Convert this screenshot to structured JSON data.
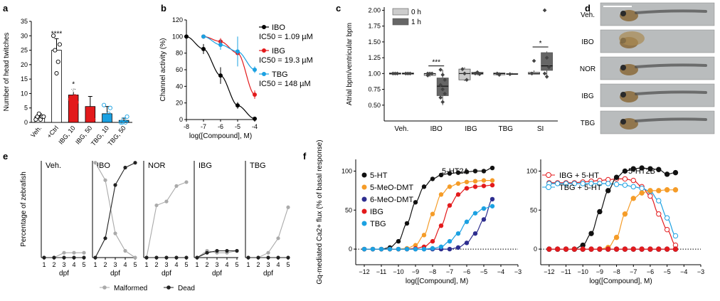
{
  "panel_letters": [
    "a",
    "b",
    "c",
    "d",
    "e",
    "f"
  ],
  "chart_data": [
    {
      "panel": "a",
      "type": "bar",
      "ylabel": "Number of head twitches",
      "ylim": [
        0,
        35
      ],
      "yticks": [
        0,
        5,
        10,
        15,
        20,
        25,
        30,
        35
      ],
      "categories": [
        "Veh.",
        "+Ctrl",
        "IBG, 10",
        "IBG, 50",
        "TBG, 10",
        "TBG, 50"
      ],
      "values": [
        2,
        25,
        9.5,
        5.5,
        3,
        0.7
      ],
      "errors": [
        1,
        4,
        2,
        3.5,
        2.5,
        0.8
      ],
      "bar_colors": [
        "#ffffff",
        "#ffffff",
        "#e31a1c",
        "#e31a1c",
        "#1ba1e2",
        "#1ba1e2"
      ],
      "points": [
        [
          1,
          2,
          3,
          1,
          2,
          2
        ],
        [
          30,
          25,
          17,
          21,
          27
        ],
        [
          8,
          11,
          12,
          9,
          7
        ],
        [
          12,
          3,
          3,
          4,
          1
        ],
        [
          6,
          2,
          1,
          3,
          5
        ],
        [
          0,
          0,
          1,
          0,
          2
        ]
      ],
      "significance": [
        "",
        "****",
        "*",
        "",
        "",
        ""
      ]
    },
    {
      "panel": "b",
      "type": "line",
      "xlabel": "log([Compound], M)",
      "ylabel": "Channel activity (%)",
      "xlim": [
        -8,
        -4
      ],
      "ylim": [
        0,
        120
      ],
      "xticks": [
        -8,
        -7,
        -6,
        -5,
        -4
      ],
      "yticks": [
        0,
        20,
        40,
        60,
        80,
        100,
        120
      ],
      "series": [
        {
          "name": "IBO",
          "ic50_label": "IC50 = 1.09 µM",
          "color": "#000000",
          "x": [
            -8,
            -7,
            -6,
            -5,
            -4
          ],
          "y": [
            100,
            85,
            53,
            17,
            1
          ],
          "err": [
            0,
            6,
            10,
            4,
            1
          ]
        },
        {
          "name": "IBG",
          "ic50_label": "IC50 = 19.3 µM",
          "color": "#e31a1c",
          "x": [
            -7,
            -6,
            -5,
            -4
          ],
          "y": [
            100,
            94,
            80,
            30
          ],
          "err": [
            2,
            4,
            6,
            5
          ]
        },
        {
          "name": "TBG",
          "ic50_label": "IC50 = 148 µM",
          "color": "#1ba1e2",
          "x": [
            -7,
            -6,
            -5,
            -4
          ],
          "y": [
            100,
            90,
            82,
            60
          ],
          "err": [
            2,
            6,
            18,
            4
          ]
        }
      ]
    },
    {
      "panel": "c",
      "type": "box",
      "ylabel": "Atrial bpm/ventricular bpm",
      "ylim": [
        0.25,
        2.05
      ],
      "yticks": [
        0.5,
        0.75,
        1.0,
        1.25,
        1.5,
        1.75,
        2.0
      ],
      "categories": [
        "Veh.",
        "IBO",
        "IBG",
        "TBG",
        "SI"
      ],
      "category_colors": [
        "#000000",
        "#000000",
        "#e31a1c",
        "#1ba1e2",
        "#000000"
      ],
      "legend": [
        {
          "name": "0 h",
          "color": "#cccccc"
        },
        {
          "name": "1 h",
          "color": "#666666"
        }
      ],
      "boxes": [
        {
          "group": 0,
          "time": "0 h",
          "q1": 0.99,
          "median": 1.0,
          "q3": 1.01,
          "min": 0.98,
          "max": 1.02,
          "points": [
            1.0,
            1.0,
            1.0
          ]
        },
        {
          "group": 0,
          "time": "1 h",
          "q1": 0.99,
          "median": 1.0,
          "q3": 1.01,
          "min": 0.98,
          "max": 1.02,
          "points": [
            1.0,
            1.0,
            1.0
          ]
        },
        {
          "group": 1,
          "time": "0 h",
          "q1": 0.97,
          "median": 1.0,
          "q3": 1.0,
          "min": 0.95,
          "max": 1.02,
          "points": [
            1.0,
            1.0,
            1.0,
            0.97
          ]
        },
        {
          "group": 1,
          "time": "1 h",
          "q1": 0.65,
          "median": 0.8,
          "q3": 0.93,
          "min": 0.5,
          "max": 1.06,
          "points": [
            1.06,
            0.98,
            0.9,
            0.82,
            0.75,
            0.68,
            0.62,
            0.55
          ]
        },
        {
          "group": 2,
          "time": "0 h",
          "q1": 0.9,
          "median": 1.0,
          "q3": 1.07,
          "min": 0.88,
          "max": 1.1,
          "points": [
            1.07,
            1.0,
            0.9
          ]
        },
        {
          "group": 2,
          "time": "1 h",
          "q1": 0.99,
          "median": 1.0,
          "q3": 1.02,
          "min": 0.97,
          "max": 1.03,
          "points": [
            1.0,
            1.02,
            0.99
          ]
        },
        {
          "group": 3,
          "time": "0 h",
          "q1": 0.98,
          "median": 1.0,
          "q3": 1.01,
          "min": 0.97,
          "max": 1.02,
          "points": [
            1.0,
            0.98
          ]
        },
        {
          "group": 3,
          "time": "1 h",
          "q1": 0.99,
          "median": 0.99,
          "q3": 1.0,
          "min": 0.98,
          "max": 1.01,
          "points": [
            0.99
          ]
        },
        {
          "group": 4,
          "time": "0 h",
          "q1": 0.99,
          "median": 1.0,
          "q3": 1.02,
          "min": 0.99,
          "max": 1.05,
          "points": [
            1.0,
            1.2
          ]
        },
        {
          "group": 4,
          "time": "1 h",
          "q1": 1.05,
          "median": 1.12,
          "q3": 1.33,
          "min": 0.92,
          "max": 1.35,
          "points": [
            2.0,
            1.25,
            1.1,
            1.0,
            0.95
          ]
        }
      ],
      "significance": [
        {
          "group": 1,
          "label": "***"
        },
        {
          "group": 4,
          "label": "*"
        }
      ]
    },
    {
      "panel": "e",
      "type": "line",
      "xlabel": "dpf",
      "ylabel": "Percentage of zebrafish",
      "ylim": [
        0,
        100
      ],
      "xticks": [
        1,
        2,
        3,
        4,
        5
      ],
      "legend": [
        {
          "name": "Malformed",
          "color": "#aaaaaa"
        },
        {
          "name": "Dead",
          "color": "#222222"
        }
      ],
      "groups": [
        {
          "name": "Veh.",
          "color": "#000000",
          "malformed": [
            0,
            0,
            5,
            5,
            5
          ],
          "dead": [
            0,
            0,
            0,
            0,
            0
          ]
        },
        {
          "name": "IBO",
          "color": "#000000",
          "malformed": [
            98,
            80,
            25,
            7,
            0
          ],
          "dead": [
            0,
            20,
            75,
            93,
            98
          ]
        },
        {
          "name": "NOR",
          "color": "#000000",
          "malformed": [
            0,
            54,
            58,
            74,
            78
          ],
          "dead": [
            0,
            0,
            0,
            0,
            0
          ]
        },
        {
          "name": "IBG",
          "color": "#e31a1c",
          "malformed": [
            0,
            7,
            5,
            5,
            7
          ],
          "dead": [
            0,
            5,
            7,
            7,
            7
          ]
        },
        {
          "name": "TBG",
          "color": "#1ba1e2",
          "malformed": [
            0,
            0,
            5,
            20,
            52
          ],
          "dead": [
            0,
            0,
            0,
            0,
            0
          ]
        }
      ]
    },
    {
      "panel": "f-left",
      "type": "line",
      "title": "5-HT2A",
      "xlabel": "log([Compound], M)",
      "ylabel": "Gq-mediated Ca2+ flux (% of basal response)",
      "xlim": [
        -12.5,
        -3
      ],
      "ylim": [
        -20,
        115
      ],
      "xticks": [
        -12,
        -11,
        -10,
        -9,
        -8,
        -7,
        -6,
        -5,
        -4,
        -3
      ],
      "yticks": [
        0,
        50,
        100
      ],
      "series": [
        {
          "name": "5-HT",
          "color": "#111111",
          "x": [
            -12,
            -11.5,
            -11,
            -10.5,
            -10,
            -9.5,
            -9,
            -8.5,
            -8,
            -7.5,
            -7,
            -6.5,
            -6,
            -5.5,
            -5,
            -4.5
          ],
          "y": [
            0,
            0,
            0,
            2,
            10,
            33,
            60,
            80,
            90,
            95,
            97,
            98,
            99,
            100,
            100,
            104
          ]
        },
        {
          "name": "5-MeO-DMT",
          "color": "#f59c28",
          "x": [
            -12,
            -11.5,
            -11,
            -10.5,
            -10,
            -9.5,
            -9,
            -8.5,
            -8,
            -7.5,
            -7,
            -6.5,
            -6,
            -5.5,
            -5,
            -4.5
          ],
          "y": [
            0,
            0,
            0,
            0,
            0,
            1,
            5,
            18,
            45,
            70,
            80,
            84,
            86,
            87,
            88,
            88
          ]
        },
        {
          "name": "6-MeO-DMT",
          "color": "#2e2e8f",
          "x": [
            -12,
            -11.5,
            -11,
            -10.5,
            -10,
            -9.5,
            -9,
            -8.5,
            -8,
            -7.5,
            -7,
            -6.5,
            -6,
            -5.5,
            -5,
            -4.5
          ],
          "y": [
            0,
            0,
            0,
            0,
            0,
            0,
            0,
            0,
            0,
            0,
            0,
            2,
            8,
            20,
            38,
            64
          ]
        },
        {
          "name": "IBG",
          "color": "#e31a1c",
          "x": [
            -12,
            -11.5,
            -11,
            -10.5,
            -10,
            -9.5,
            -9,
            -8.5,
            -8,
            -7.5,
            -7,
            -6.5,
            -6,
            -5.5,
            -5,
            -4.5
          ],
          "y": [
            0,
            0,
            0,
            0,
            0,
            0,
            1,
            3,
            10,
            30,
            56,
            70,
            78,
            80,
            81,
            82
          ]
        },
        {
          "name": "TBG",
          "color": "#1ba1e2",
          "x": [
            -12,
            -11.5,
            -11,
            -10.5,
            -10,
            -9.5,
            -9,
            -8.5,
            -8,
            -7.5,
            -7,
            -6.5,
            -6,
            -5.5,
            -5,
            -4.5
          ],
          "y": [
            0,
            0,
            0,
            0,
            0,
            0,
            0,
            0,
            1,
            3,
            10,
            20,
            35,
            46,
            52,
            55
          ]
        }
      ]
    },
    {
      "panel": "f-right",
      "type": "line",
      "title": "5-HT2B",
      "xlabel": "log([Compound], M)",
      "xlim": [
        -12.5,
        -3
      ],
      "ylim": [
        -20,
        115
      ],
      "xticks": [
        -12,
        -11,
        -10,
        -9,
        -8,
        -7,
        -6,
        -5,
        -4,
        -3
      ],
      "yticks": [
        0,
        50,
        100
      ],
      "series": [
        {
          "name": "IBG + 5-HT",
          "color": "#e31a1c",
          "open": true,
          "x": [
            -12,
            -11.5,
            -11,
            -10.5,
            -10,
            -9.5,
            -9,
            -8.5,
            -8,
            -7.5,
            -7,
            -6.5,
            -6,
            -5.5,
            -5,
            -4.5
          ],
          "y": [
            85,
            85,
            85,
            85,
            86,
            87,
            88,
            89,
            90,
            90,
            88,
            80,
            68,
            45,
            25,
            5
          ]
        },
        {
          "name": "TBG + 5-HT",
          "color": "#1ba1e2",
          "open": true,
          "x": [
            -12,
            -11.5,
            -11,
            -10.5,
            -10,
            -9.5,
            -9,
            -8.5,
            -8,
            -7.5,
            -7,
            -6.5,
            -6,
            -5.5,
            -5,
            -4.5
          ],
          "y": [
            84,
            84,
            84,
            84,
            84,
            84,
            84,
            84,
            83,
            82,
            80,
            78,
            74,
            62,
            40,
            17
          ]
        },
        {
          "name": "5-HT",
          "color": "#111111",
          "x": [
            -12,
            -11.5,
            -11,
            -10.5,
            -10,
            -9.5,
            -9,
            -8.5,
            -8,
            -7.5,
            -7,
            -6.5,
            -6,
            -5.5,
            -5,
            -4.5
          ],
          "y": [
            0,
            0,
            0,
            0,
            5,
            20,
            48,
            75,
            92,
            100,
            103,
            104,
            103,
            102,
            96,
            98
          ]
        },
        {
          "name": "5-MeO-DMT",
          "color": "#f59c28",
          "x": [
            -12,
            -11.5,
            -11,
            -10.5,
            -10,
            -9.5,
            -9,
            -8.5,
            -8,
            -7.5,
            -7,
            -6.5,
            -6,
            -5.5,
            -5,
            -4.5
          ],
          "y": [
            0,
            0,
            0,
            0,
            0,
            0,
            0,
            2,
            15,
            45,
            65,
            72,
            75,
            75,
            76,
            76
          ]
        },
        {
          "name": "6-MeO-DMT",
          "color": "#2e2e8f",
          "x": [
            -12,
            -11.5,
            -11,
            -10.5,
            -10,
            -9.5,
            -9,
            -8.5,
            -8,
            -7.5,
            -7,
            -6.5,
            -6,
            -5.5,
            -5,
            -4.5
          ],
          "y": [
            0,
            0,
            0,
            0,
            0,
            0,
            0,
            0,
            0,
            0,
            0,
            0,
            0,
            0,
            0,
            0
          ]
        },
        {
          "name": "TBG",
          "color": "#1ba1e2",
          "x": [
            -12,
            -11.5,
            -11,
            -10.5,
            -10,
            -9.5,
            -9,
            -8.5,
            -8,
            -7.5,
            -7,
            -6.5,
            -6,
            -5.5,
            -5,
            -4.5
          ],
          "y": [
            0,
            0,
            0,
            0,
            0,
            0,
            0,
            0,
            0,
            0,
            0,
            0,
            0,
            0,
            0,
            0
          ]
        },
        {
          "name": "IBG",
          "color": "#e31a1c",
          "x": [
            -12,
            -11.5,
            -11,
            -10.5,
            -10,
            -9.5,
            -9,
            -8.5,
            -8,
            -7.5,
            -7,
            -6.5,
            -6,
            -5.5,
            -5,
            -4.5
          ],
          "y": [
            0,
            0,
            0,
            0,
            0,
            0,
            0,
            0,
            0,
            0,
            0,
            0,
            0,
            0,
            0,
            0
          ]
        }
      ]
    }
  ],
  "panel_d": {
    "labels": [
      {
        "text": "Veh.",
        "color": "#000000"
      },
      {
        "text": "IBO",
        "color": "#000000"
      },
      {
        "text": "NOR",
        "color": "#000000"
      },
      {
        "text": "IBG",
        "color": "#e31a1c"
      },
      {
        "text": "TBG",
        "color": "#1ba1e2"
      }
    ]
  }
}
